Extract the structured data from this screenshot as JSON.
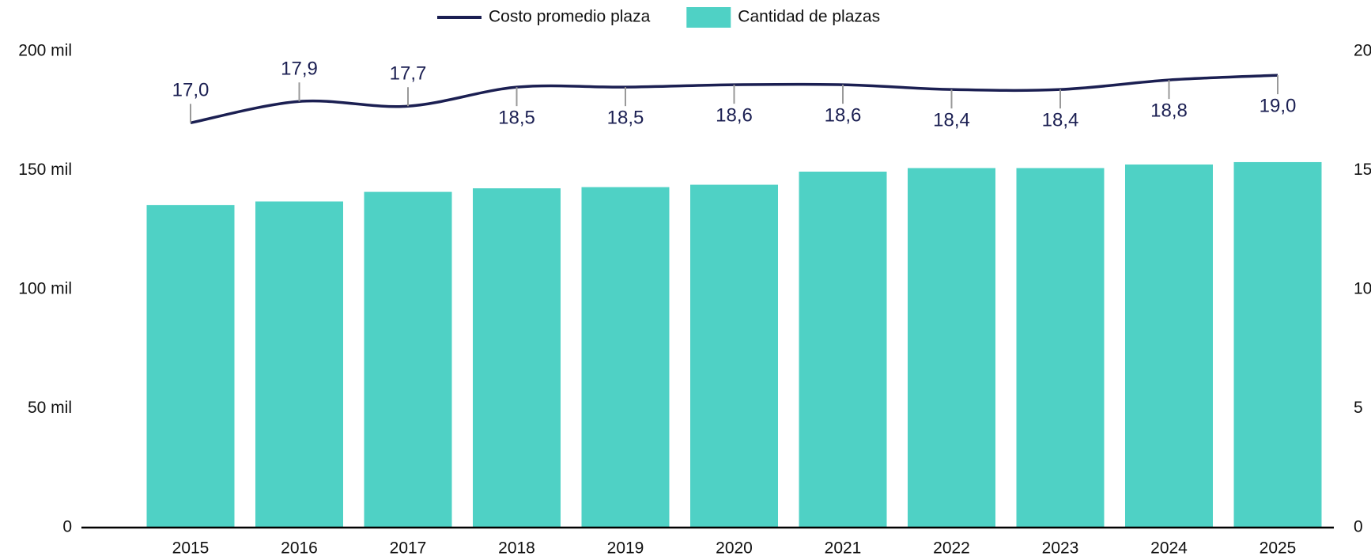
{
  "chart_data": {
    "type": "combo",
    "categories": [
      "2015",
      "2016",
      "2017",
      "2018",
      "2019",
      "2020",
      "2021",
      "2022",
      "2023",
      "2024",
      "2025"
    ],
    "series": [
      {
        "name": "Costo promedio plaza",
        "type": "line",
        "axis": "y2",
        "color": "#1b1f52",
        "values": [
          17.0,
          17.9,
          17.7,
          18.5,
          18.5,
          18.6,
          18.6,
          18.4,
          18.4,
          18.8,
          19.0
        ],
        "value_labels": [
          "17,0",
          "17,9",
          "17,7",
          "18,5",
          "18,5",
          "18,6",
          "18,6",
          "18,4",
          "18,4",
          "18,8",
          "19,0"
        ]
      },
      {
        "name": "Cantidad de plazas",
        "type": "bar",
        "color": "#4fd1c5",
        "values": [
          135500,
          137000,
          141000,
          142500,
          143000,
          144000,
          149500,
          151000,
          151000,
          152500,
          153500
        ]
      }
    ],
    "ylim": [
      0,
      200000
    ],
    "yticks": [
      0,
      {
        "value": 50000,
        "label": "50 mil"
      },
      {
        "value": 100000,
        "label": "100 mil"
      },
      {
        "value": 150000,
        "label": "150 mil"
      },
      {
        "value": 200000,
        "label": "200 mil"
      }
    ],
    "y2lim": [
      0,
      20
    ],
    "y2ticks": [
      0,
      5,
      10,
      15,
      20
    ],
    "legend": "top"
  }
}
